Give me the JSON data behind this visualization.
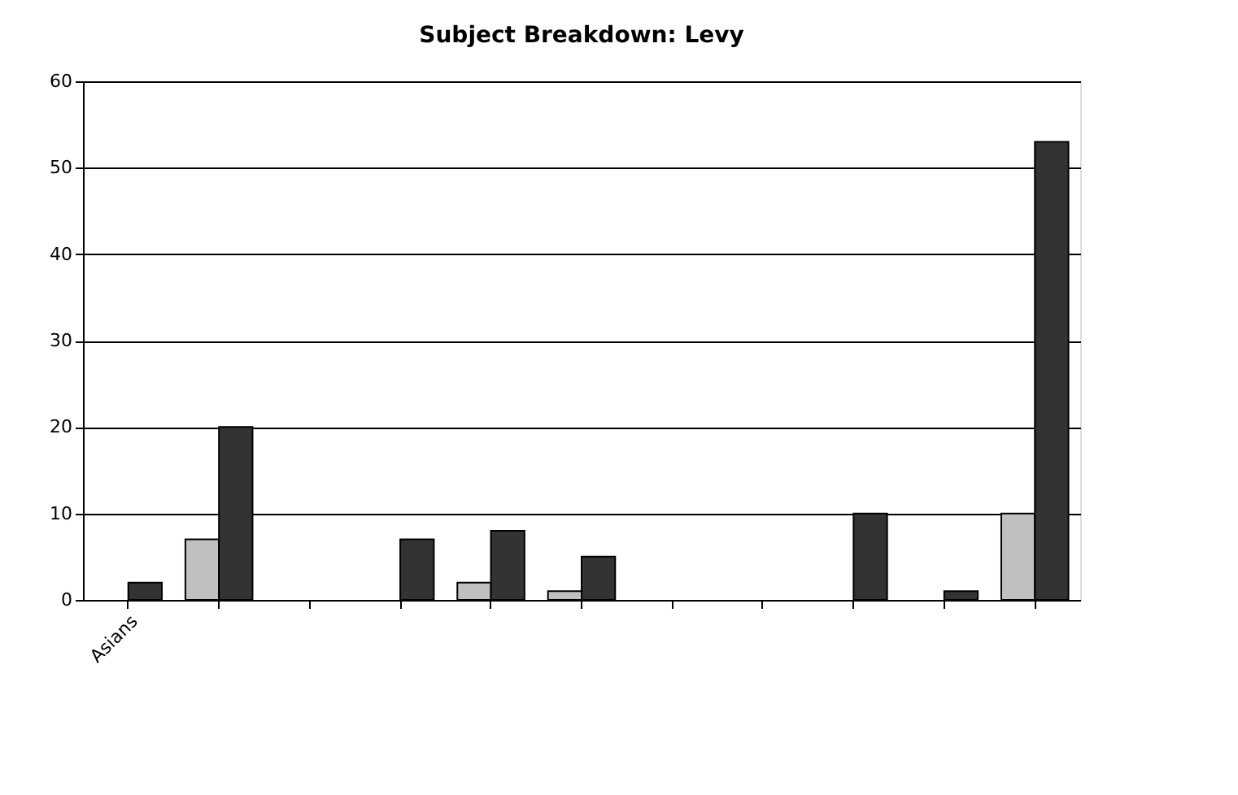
{
  "chart_data": {
    "type": "bar",
    "title": "Subject Breakdown: Levy",
    "categories": [
      "Asians",
      null,
      null,
      null,
      null,
      null,
      null,
      null,
      null,
      null,
      null
    ],
    "series": [
      {
        "color": "#c0c0c0",
        "values": [
          0,
          7,
          0,
          0,
          2,
          1,
          0,
          0,
          0,
          0,
          10
        ]
      },
      {
        "color": "#333333",
        "values": [
          2,
          20,
          0,
          7,
          8,
          5,
          0,
          0,
          10,
          1,
          53
        ]
      }
    ],
    "ylim": [
      0,
      60
    ],
    "yticks": [
      0,
      10,
      20,
      30,
      40,
      50,
      60
    ],
    "grid": "y",
    "legend": false
  }
}
